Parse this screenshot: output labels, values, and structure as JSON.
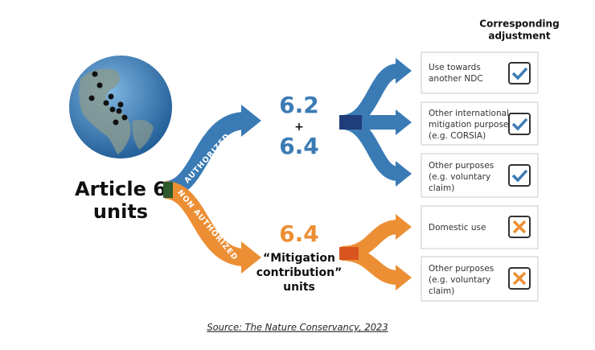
{
  "header": {
    "lines": [
      "Corresponding",
      "adjustment"
    ]
  },
  "source": {
    "lines": [
      "Article 6",
      "units"
    ]
  },
  "branches": [
    {
      "label": "AUTHORIZED",
      "lines": [
        "6.2",
        "+",
        "6.4"
      ]
    },
    {
      "label": "NON AUTHORIZED",
      "lines": [
        "6.4",
        "“Mitigation",
        "contribution”",
        "units"
      ]
    }
  ],
  "boxes": [
    {
      "lines": [
        "Use towards",
        "another NDC"
      ]
    },
    {
      "lines": [
        "Other international",
        "mitigation purposes",
        "(e.g. CORSIA)"
      ]
    },
    {
      "lines": [
        "Other purposes",
        "(e.g. voluntary",
        "claim)"
      ]
    },
    {
      "lines": [
        "Domestic use"
      ]
    },
    {
      "lines": [
        "Other purposes",
        "(e.g. voluntary",
        "claim)"
      ]
    }
  ],
  "footer": "Source: The Nature Conservancy, 2023"
}
